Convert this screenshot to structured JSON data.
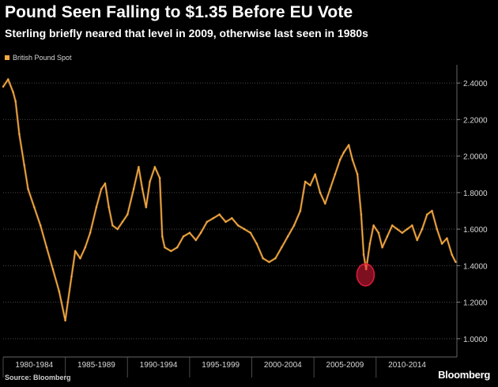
{
  "chart_data": {
    "type": "line",
    "title": "Pound Seen Falling to $1.35 Before EU Vote",
    "subtitle": "Sterling briefly neared that level in 2009, otherwise last seen in 1980s",
    "xlabel": "",
    "ylabel": "",
    "legend": "top-left",
    "grid": true,
    "xlim": [
      1980,
      2016.5
    ],
    "ylim": [
      0.9,
      2.5
    ],
    "categories": [
      "1980-1984",
      "1985-1989",
      "1990-1994",
      "1995-1999",
      "2000-2004",
      "2005-2009",
      "2010-2014"
    ],
    "y_ticks": [
      1.0,
      1.2,
      1.4,
      1.6,
      1.8,
      2.0,
      2.2,
      2.4
    ],
    "y_tick_labels": [
      "1.0000",
      "1.2000",
      "1.4000",
      "1.6000",
      "1.8000",
      "2.0000",
      "2.2000",
      "2.4000"
    ],
    "series": [
      {
        "name": "British Pound Spot",
        "color": "#f5a941",
        "x": [
          1980.0,
          1980.4,
          1980.8,
          1981.0,
          1981.3,
          1981.7,
          1982.0,
          1982.5,
          1983.0,
          1983.5,
          1984.0,
          1984.5,
          1985.0,
          1985.2,
          1985.5,
          1985.8,
          1986.2,
          1986.6,
          1987.0,
          1987.5,
          1987.9,
          1988.2,
          1988.5,
          1988.8,
          1989.2,
          1989.6,
          1990.0,
          1990.5,
          1990.9,
          1991.2,
          1991.5,
          1991.8,
          1992.2,
          1992.6,
          1992.8,
          1993.0,
          1993.5,
          1994.0,
          1994.5,
          1995.0,
          1995.5,
          1995.9,
          1996.4,
          1996.9,
          1997.4,
          1997.9,
          1998.4,
          1998.9,
          1999.4,
          1999.9,
          2000.4,
          2000.9,
          2001.4,
          2001.9,
          2002.4,
          2002.9,
          2003.4,
          2003.9,
          2004.3,
          2004.7,
          2005.1,
          2005.5,
          2005.9,
          2006.3,
          2006.7,
          2007.1,
          2007.4,
          2007.8,
          2008.1,
          2008.5,
          2008.8,
          2009.0,
          2009.2,
          2009.5,
          2009.8,
          2010.2,
          2010.5,
          2010.9,
          2011.3,
          2011.7,
          2012.1,
          2012.5,
          2012.9,
          2013.3,
          2013.7,
          2014.1,
          2014.5,
          2014.9,
          2015.3,
          2015.7,
          2016.1,
          2016.4
        ],
        "values": [
          2.38,
          2.42,
          2.35,
          2.3,
          2.12,
          1.95,
          1.82,
          1.72,
          1.62,
          1.5,
          1.38,
          1.26,
          1.1,
          1.2,
          1.34,
          1.48,
          1.44,
          1.5,
          1.58,
          1.72,
          1.82,
          1.85,
          1.72,
          1.62,
          1.6,
          1.64,
          1.68,
          1.82,
          1.94,
          1.82,
          1.72,
          1.86,
          1.94,
          1.88,
          1.56,
          1.5,
          1.48,
          1.5,
          1.56,
          1.58,
          1.54,
          1.58,
          1.64,
          1.66,
          1.68,
          1.64,
          1.66,
          1.62,
          1.6,
          1.58,
          1.52,
          1.44,
          1.42,
          1.44,
          1.5,
          1.56,
          1.62,
          1.7,
          1.86,
          1.84,
          1.9,
          1.8,
          1.74,
          1.82,
          1.9,
          1.98,
          2.02,
          2.06,
          1.98,
          1.9,
          1.68,
          1.46,
          1.38,
          1.52,
          1.62,
          1.58,
          1.5,
          1.56,
          1.62,
          1.6,
          1.58,
          1.6,
          1.62,
          1.54,
          1.6,
          1.68,
          1.7,
          1.6,
          1.52,
          1.55,
          1.46,
          1.42
        ],
        "annotation_x": 2009.15,
        "annotation_y": 1.35,
        "annotation_color": "#e31b3a"
      }
    ]
  },
  "footer": {
    "source": "Source: Bloomberg",
    "brand": "Bloomberg"
  },
  "colors": {
    "line": "#f5a941",
    "grid": "#4a4a4a",
    "axis_text": "#d8d8d8",
    "highlight": "#e31b3a"
  }
}
